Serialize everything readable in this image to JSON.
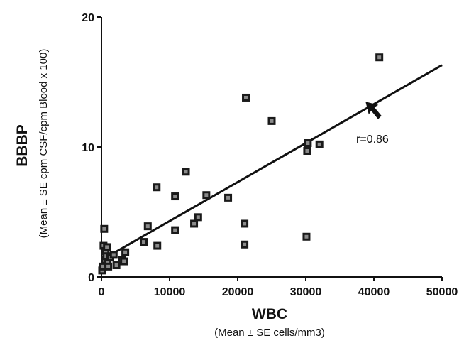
{
  "chart_data": {
    "type": "scatter",
    "xlabel": "WBC",
    "xlabel_sub": "(Mean ± SE cells/mm3)",
    "ylabel": "BBBP",
    "ylabel_sub": "(Mean ± SE cpm CSF/cpm Blood x 100)",
    "xlim": [
      0,
      50000
    ],
    "ylim": [
      0,
      20
    ],
    "x_ticks": [
      0,
      10000,
      20000,
      30000,
      40000,
      50000
    ],
    "y_ticks": [
      0,
      10,
      20
    ],
    "x_tick_labels": [
      "0",
      "10000",
      "20000",
      "30000",
      "40000",
      "50000"
    ],
    "y_tick_labels": [
      "0",
      "10",
      "20"
    ],
    "grid": false,
    "series": [
      {
        "points": [
          [
            100,
            0.5
          ],
          [
            200,
            0.8
          ],
          [
            300,
            2.4
          ],
          [
            400,
            3.7
          ],
          [
            500,
            1.3
          ],
          [
            600,
            2.0
          ],
          [
            700,
            1.6
          ],
          [
            800,
            2.3
          ],
          [
            900,
            1.1
          ],
          [
            1000,
            0.8
          ],
          [
            1300,
            1.5
          ],
          [
            1800,
            1.7
          ],
          [
            2200,
            0.9
          ],
          [
            3000,
            1.3
          ],
          [
            3300,
            1.2
          ],
          [
            3500,
            1.9
          ],
          [
            6200,
            2.7
          ],
          [
            6800,
            3.9
          ],
          [
            8200,
            2.4
          ],
          [
            8100,
            6.9
          ],
          [
            10800,
            3.6
          ],
          [
            10800,
            6.2
          ],
          [
            12400,
            8.1
          ],
          [
            13600,
            4.1
          ],
          [
            14200,
            4.6
          ],
          [
            15400,
            6.3
          ],
          [
            18600,
            6.1
          ],
          [
            21000,
            4.1
          ],
          [
            21000,
            2.5
          ],
          [
            21200,
            13.8
          ],
          [
            25000,
            12.0
          ],
          [
            30100,
            3.1
          ],
          [
            30200,
            9.7
          ],
          [
            30300,
            10.3
          ],
          [
            32000,
            10.2
          ],
          [
            40800,
            16.9
          ]
        ]
      }
    ],
    "trend_line": {
      "x": [
        0,
        50000
      ],
      "y": [
        1.3,
        16.3
      ]
    },
    "annotation": {
      "text": "r=0.86",
      "arrow_target": [
        40000,
        13.5
      ]
    }
  }
}
